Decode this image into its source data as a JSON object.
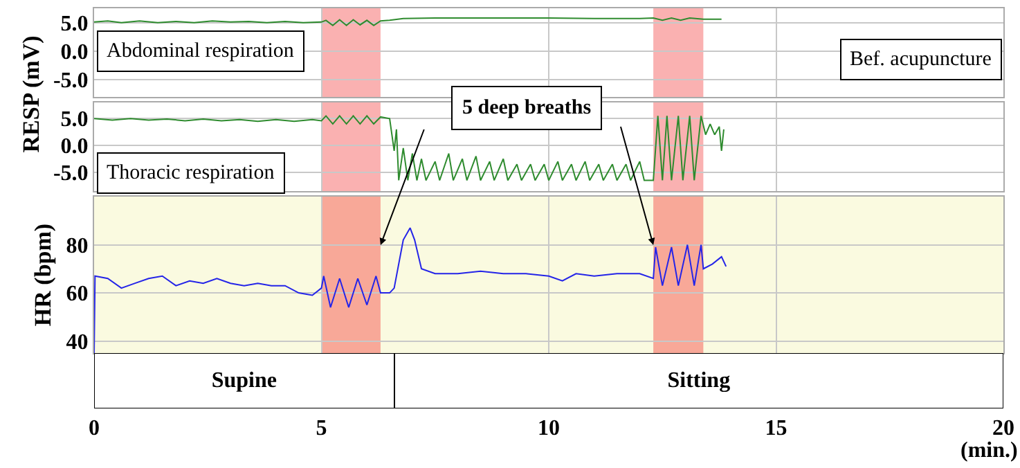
{
  "chart_data": [
    {
      "type": "line",
      "ylabel": "RESP (mV)",
      "annotations": [
        "Abdominal respiration",
        "Bef. acupuncture"
      ],
      "xlim": [
        0,
        20
      ],
      "xticks": [
        0,
        5,
        10,
        15,
        20
      ],
      "ylim": [
        -8,
        7.5
      ],
      "yticks": [
        {
          "value": 5,
          "label": "5.0"
        },
        {
          "value": 0,
          "label": "0.0"
        },
        {
          "value": -5,
          "label": "-5.0"
        }
      ],
      "grid": true,
      "tick_labels": "y",
      "bands": [
        {
          "axis": "x",
          "from": 5,
          "to": 6.3,
          "color": "#fab1b1"
        },
        {
          "axis": "x",
          "from": 12.3,
          "to": 13.4,
          "color": "#fab1b1"
        }
      ],
      "series": [
        {
          "color": "#2e8b2e",
          "x": [
            0,
            0.3,
            0.6,
            1,
            1.4,
            1.8,
            2.2,
            2.6,
            3,
            3.4,
            3.8,
            4.2,
            4.6,
            5,
            5.1,
            5.25,
            5.4,
            5.55,
            5.7,
            5.85,
            6,
            6.15,
            6.3,
            6.5,
            6.8,
            7.5,
            9,
            10,
            11,
            12,
            12.3,
            12.5,
            12.7,
            12.9,
            13.1,
            13.4,
            13.8
          ],
          "values": [
            5.1,
            5.3,
            5,
            5.3,
            5,
            5.2,
            5,
            5.3,
            5.1,
            5.2,
            5,
            5.2,
            5,
            5.1,
            5.4,
            4.5,
            5.5,
            4.5,
            5.5,
            4.6,
            5.4,
            4.5,
            5.3,
            5.4,
            5.7,
            5.8,
            5.8,
            5.8,
            5.7,
            5.7,
            5.8,
            5.4,
            5.8,
            5.4,
            5.8,
            5.6,
            5.6
          ]
        }
      ]
    },
    {
      "type": "line",
      "annotations": [
        "Thoracic respiration"
      ],
      "xlim": [
        0,
        20
      ],
      "xticks": [
        0,
        5,
        10,
        15,
        20
      ],
      "ylim": [
        -8.5,
        8
      ],
      "yticks": [
        {
          "value": 5,
          "label": "5.0"
        },
        {
          "value": 0,
          "label": "0.0"
        },
        {
          "value": -5,
          "label": "-5.0"
        }
      ],
      "grid": true,
      "tick_labels": "y",
      "bands": [
        {
          "axis": "x",
          "from": 5,
          "to": 6.3,
          "color": "#fab1b1"
        },
        {
          "axis": "x",
          "from": 12.3,
          "to": 13.4,
          "color": "#fab1b1"
        }
      ],
      "series": [
        {
          "color": "#2e8b2e",
          "x": [
            0,
            0.4,
            0.8,
            1.2,
            1.6,
            2,
            2.4,
            2.8,
            3.2,
            3.6,
            4,
            4.4,
            4.8,
            5,
            5.1,
            5.25,
            5.4,
            5.55,
            5.7,
            5.85,
            6,
            6.15,
            6.3,
            6.5,
            6.6,
            6.65,
            6.7,
            6.8,
            6.9,
            7,
            7.1,
            7.2,
            7.3,
            7.5,
            7.6,
            7.8,
            7.9,
            8.1,
            8.2,
            8.4,
            8.5,
            8.7,
            8.8,
            9,
            9.1,
            9.3,
            9.4,
            9.6,
            9.7,
            9.9,
            10,
            10.2,
            10.3,
            10.5,
            10.6,
            10.8,
            10.9,
            11.1,
            11.2,
            11.4,
            11.5,
            11.7,
            11.8,
            12,
            12.1,
            12.3,
            12.4,
            12.5,
            12.6,
            12.7,
            12.85,
            12.95,
            13.1,
            13.2,
            13.35,
            13.45,
            13.55,
            13.65,
            13.75,
            13.8,
            13.85
          ],
          "values": [
            5,
            4.7,
            5,
            4.7,
            4.9,
            4.6,
            4.9,
            4.6,
            4.8,
            4.5,
            4.8,
            4.5,
            4.8,
            4.6,
            5.5,
            4,
            5.5,
            4,
            5.5,
            4,
            5.5,
            4,
            5.3,
            5,
            -1,
            3,
            -6.5,
            -0.5,
            -6.5,
            -1.5,
            -6.5,
            -2.5,
            -6.5,
            -3,
            -6.5,
            -1.5,
            -6.5,
            -2.5,
            -6.5,
            -2,
            -6.5,
            -3,
            -6.5,
            -2.5,
            -6.5,
            -3.5,
            -6.5,
            -3.5,
            -6.5,
            -3.5,
            -6.5,
            -3,
            -6.5,
            -3.5,
            -6.5,
            -3,
            -6.5,
            -3.5,
            -6.5,
            -3.5,
            -6.5,
            -3.5,
            -6.5,
            -3,
            -6.5,
            -6.5,
            5.5,
            -6.5,
            5.5,
            -6.5,
            5.5,
            -6.5,
            5.5,
            -6.5,
            5.5,
            2,
            4,
            2,
            3.5,
            -1,
            3
          ]
        }
      ]
    },
    {
      "type": "line",
      "ylabel": "HR (bpm)",
      "annotations": [
        "5 deep breaths"
      ],
      "xlim": [
        0,
        20
      ],
      "xticks": [
        0,
        5,
        10,
        15,
        20
      ],
      "ylim": [
        35,
        100
      ],
      "yticks": [
        40,
        60,
        80
      ],
      "grid": true,
      "tick_labels": "y",
      "bands": [
        {
          "axis": "x",
          "from": 5,
          "to": 6.3,
          "color": "#f8a898"
        },
        {
          "axis": "x",
          "from": 12.3,
          "to": 13.4,
          "color": "#f8a898"
        }
      ],
      "series": [
        {
          "color": "#2424e8",
          "x": [
            0,
            0.02,
            0.3,
            0.6,
            0.9,
            1.2,
            1.5,
            1.8,
            2.1,
            2.4,
            2.7,
            3,
            3.3,
            3.6,
            3.9,
            4.2,
            4.5,
            4.8,
            5,
            5.05,
            5.2,
            5.4,
            5.6,
            5.8,
            6,
            6.2,
            6.3,
            6.5,
            6.6,
            6.8,
            6.95,
            7.05,
            7.2,
            7.5,
            8,
            8.5,
            9,
            9.5,
            10,
            10.3,
            10.6,
            11,
            11.5,
            12,
            12.3,
            12.35,
            12.5,
            12.7,
            12.85,
            13.05,
            13.2,
            13.35,
            13.4,
            13.6,
            13.8,
            13.9
          ],
          "values": [
            35,
            67,
            66,
            62,
            64,
            66,
            67,
            63,
            65,
            64,
            66,
            64,
            63,
            64,
            63,
            63,
            60,
            59,
            62,
            67,
            54,
            66,
            54,
            66,
            55,
            67,
            60,
            60,
            62,
            82,
            87,
            82,
            70,
            68,
            68,
            69,
            68,
            68,
            67,
            65,
            68,
            67,
            68,
            68,
            66,
            79,
            63,
            79,
            63,
            80,
            63,
            80,
            70,
            72,
            75,
            71
          ]
        }
      ]
    },
    {
      "type": "bar",
      "orientation": "horizontal",
      "stacked": true,
      "xlabel": "(min.)",
      "categories": [
        null
      ],
      "xlim": [
        0,
        20
      ],
      "xticks": [
        0,
        5,
        10,
        15,
        20
      ],
      "tick_labels": "x",
      "series": [
        {
          "name": "Supine",
          "color": "#ffffff",
          "values": [
            6.6
          ]
        },
        {
          "name": "Sitting",
          "color": "#ffffff",
          "values": [
            13.4
          ]
        }
      ]
    }
  ]
}
